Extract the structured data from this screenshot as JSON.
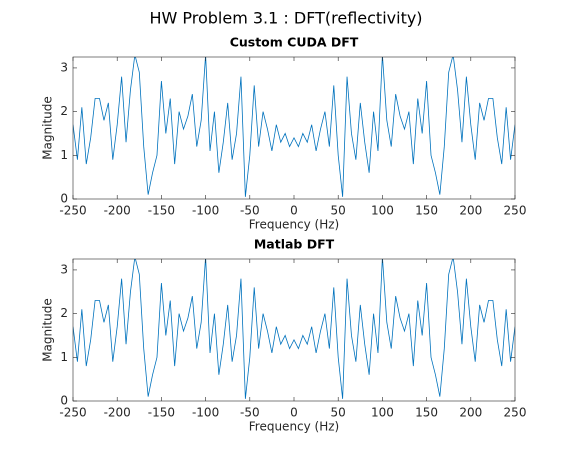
{
  "title": "HW Problem 3.1 : DFT(reflectivity)",
  "chart_data": [
    {
      "type": "line",
      "title": "Custom CUDA DFT",
      "xlabel": "Frequency (Hz)",
      "ylabel": "Magnitude",
      "color": "#0072bd",
      "xlim": [
        -250,
        250
      ],
      "xticks": [
        -250,
        -200,
        -150,
        -100,
        -50,
        0,
        50,
        100,
        150,
        200,
        250
      ],
      "ylim": [
        0,
        3.25
      ],
      "yticks": [
        0,
        1,
        2,
        3
      ],
      "x": [
        -250,
        -245,
        -240,
        -235,
        -230,
        -225,
        -220,
        -215,
        -210,
        -205,
        -200,
        -195,
        -190,
        -185,
        -180,
        -175,
        -170,
        -165,
        -160,
        -155,
        -150,
        -145,
        -140,
        -135,
        -130,
        -125,
        -120,
        -115,
        -110,
        -105,
        -100,
        -95,
        -90,
        -85,
        -80,
        -75,
        -70,
        -65,
        -60,
        -55,
        -50,
        -45,
        -40,
        -35,
        -30,
        -25,
        -20,
        -15,
        -10,
        -5,
        0,
        5,
        10,
        15,
        20,
        25,
        30,
        35,
        40,
        45,
        50,
        55,
        60,
        65,
        70,
        75,
        80,
        85,
        90,
        95,
        100,
        105,
        110,
        115,
        120,
        125,
        130,
        135,
        140,
        145,
        150,
        155,
        160,
        165,
        170,
        175,
        180,
        185,
        190,
        195,
        200,
        205,
        210,
        215,
        220,
        225,
        230,
        235,
        240,
        245,
        250
      ],
      "values": [
        1.7,
        0.9,
        2.1,
        0.8,
        1.4,
        2.3,
        2.3,
        1.8,
        2.2,
        0.9,
        1.7,
        2.8,
        1.3,
        2.5,
        3.3,
        2.9,
        1.2,
        0.1,
        0.6,
        1.0,
        2.7,
        1.5,
        2.3,
        0.8,
        2.0,
        1.6,
        1.9,
        2.4,
        1.2,
        1.8,
        3.3,
        1.1,
        2.0,
        0.6,
        1.3,
        2.2,
        0.9,
        1.5,
        2.8,
        0.05,
        1.0,
        2.6,
        1.2,
        2.0,
        1.6,
        1.1,
        1.7,
        1.3,
        1.5,
        1.2,
        1.4,
        1.2,
        1.5,
        1.3,
        1.7,
        1.1,
        1.6,
        2.0,
        1.2,
        2.6,
        1.0,
        0.05,
        2.8,
        1.5,
        0.9,
        2.2,
        1.3,
        0.6,
        2.0,
        1.1,
        3.3,
        1.8,
        1.2,
        2.4,
        1.9,
        1.6,
        2.0,
        0.8,
        2.3,
        1.5,
        2.7,
        1.0,
        0.6,
        0.1,
        1.2,
        2.9,
        3.3,
        2.5,
        1.3,
        2.8,
        1.7,
        0.9,
        2.2,
        1.8,
        2.3,
        2.3,
        1.4,
        0.8,
        2.1,
        0.9,
        1.7
      ]
    },
    {
      "type": "line",
      "title": "Matlab DFT",
      "xlabel": "Frequency (Hz)",
      "ylabel": "Magnitude",
      "color": "#0072bd",
      "xlim": [
        -250,
        250
      ],
      "xticks": [
        -250,
        -200,
        -150,
        -100,
        -50,
        0,
        50,
        100,
        150,
        200,
        250
      ],
      "ylim": [
        0,
        3.25
      ],
      "yticks": [
        0,
        1,
        2,
        3
      ],
      "x": [
        -250,
        -245,
        -240,
        -235,
        -230,
        -225,
        -220,
        -215,
        -210,
        -205,
        -200,
        -195,
        -190,
        -185,
        -180,
        -175,
        -170,
        -165,
        -160,
        -155,
        -150,
        -145,
        -140,
        -135,
        -130,
        -125,
        -120,
        -115,
        -110,
        -105,
        -100,
        -95,
        -90,
        -85,
        -80,
        -75,
        -70,
        -65,
        -60,
        -55,
        -50,
        -45,
        -40,
        -35,
        -30,
        -25,
        -20,
        -15,
        -10,
        -5,
        0,
        5,
        10,
        15,
        20,
        25,
        30,
        35,
        40,
        45,
        50,
        55,
        60,
        65,
        70,
        75,
        80,
        85,
        90,
        95,
        100,
        105,
        110,
        115,
        120,
        125,
        130,
        135,
        140,
        145,
        150,
        155,
        160,
        165,
        170,
        175,
        180,
        185,
        190,
        195,
        200,
        205,
        210,
        215,
        220,
        225,
        230,
        235,
        240,
        245,
        250
      ],
      "values": [
        1.7,
        0.9,
        2.1,
        0.8,
        1.4,
        2.3,
        2.3,
        1.8,
        2.2,
        0.9,
        1.7,
        2.8,
        1.3,
        2.5,
        3.3,
        2.9,
        1.2,
        0.1,
        0.6,
        1.0,
        2.7,
        1.5,
        2.3,
        0.8,
        2.0,
        1.6,
        1.9,
        2.4,
        1.2,
        1.8,
        3.3,
        1.1,
        2.0,
        0.6,
        1.3,
        2.2,
        0.9,
        1.5,
        2.8,
        0.05,
        1.0,
        2.6,
        1.2,
        2.0,
        1.6,
        1.1,
        1.7,
        1.3,
        1.5,
        1.2,
        1.4,
        1.2,
        1.5,
        1.3,
        1.7,
        1.1,
        1.6,
        2.0,
        1.2,
        2.6,
        1.0,
        0.05,
        2.8,
        1.5,
        0.9,
        2.2,
        1.3,
        0.6,
        2.0,
        1.1,
        3.3,
        1.8,
        1.2,
        2.4,
        1.9,
        1.6,
        2.0,
        0.8,
        2.3,
        1.5,
        2.7,
        1.0,
        0.6,
        0.1,
        1.2,
        2.9,
        3.3,
        2.5,
        1.3,
        2.8,
        1.7,
        0.9,
        2.2,
        1.8,
        2.3,
        2.3,
        1.4,
        0.8,
        2.1,
        0.9,
        1.7
      ]
    }
  ]
}
